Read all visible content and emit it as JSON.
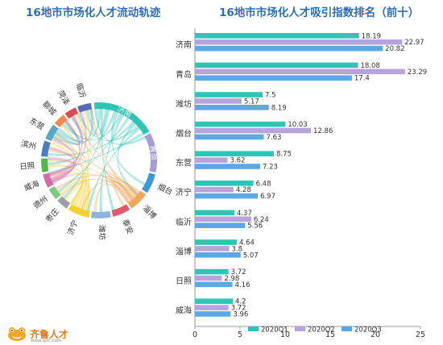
{
  "left_title": "16地市市场化人才流动轨迹",
  "right_title": "16地市市场化人才吸引指数排名（前十）",
  "chord": {
    "segments": [
      {
        "name": "济南",
        "color": "#2ec4b6"
      },
      {
        "name": "青岛",
        "color": "#a79bd6"
      },
      {
        "name": "烟台",
        "color": "#3a9ad9"
      },
      {
        "name": "淄博",
        "color": "#f2a65a"
      },
      {
        "name": "泰安",
        "color": "#e05a6b"
      },
      {
        "name": "潍坊",
        "color": "#8fb4d8"
      },
      {
        "name": "济宁",
        "color": "#f3d230"
      },
      {
        "name": "枣庄",
        "color": "#9aa0a6"
      },
      {
        "name": "德州",
        "color": "#7fc97f"
      },
      {
        "name": "威海",
        "color": "#d46aa8"
      },
      {
        "name": "日照",
        "color": "#50b848"
      },
      {
        "name": "滨州",
        "color": "#4a7fc1"
      },
      {
        "name": "东营",
        "color": "#5aa6c8"
      },
      {
        "name": "聊城",
        "color": "#f28b50"
      },
      {
        "name": "菏泽",
        "color": "#d94f4f"
      },
      {
        "name": "临沂",
        "color": "#5b6bb5"
      }
    ]
  },
  "chart_data": {
    "type": "bar",
    "orientation": "horizontal",
    "title": "16地市市场化人才吸引指数排名（前十）",
    "categories": [
      "济南",
      "青岛",
      "潍坊",
      "烟台",
      "东营",
      "济宁",
      "临沂",
      "淄博",
      "日照",
      "威海"
    ],
    "series": [
      {
        "name": "2020Q1",
        "color": "#2ec4b6",
        "values": [
          18.19,
          18.08,
          7.5,
          10.03,
          8.75,
          6.48,
          4.37,
          4.64,
          3.72,
          4.2
        ]
      },
      {
        "name": "2020Q2",
        "color": "#b7a4dc",
        "values": [
          22.97,
          23.29,
          5.17,
          12.86,
          3.62,
          4.28,
          6.24,
          3.8,
          2.98,
          3.72
        ]
      },
      {
        "name": "2020Q3",
        "color": "#5aa9e6",
        "values": [
          20.82,
          17.4,
          8.19,
          7.63,
          7.23,
          6.97,
          5.56,
          5.07,
          4.16,
          3.96
        ]
      }
    ],
    "xlim": [
      0,
      25
    ],
    "xticks": [
      0,
      5,
      10,
      15,
      20,
      25
    ],
    "legend_position": "bottom"
  },
  "logo": {
    "text": "齐鲁人才",
    "url": "www.qlrc.com"
  }
}
